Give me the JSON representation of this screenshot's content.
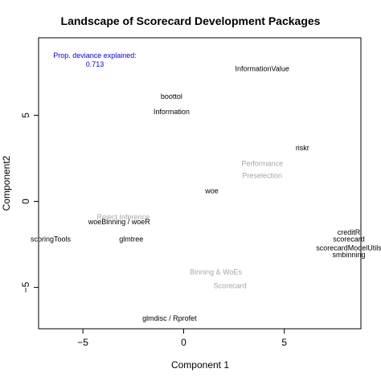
{
  "chart_data": {
    "type": "scatter",
    "title": "Landscape of Scorecard Development Packages",
    "xlabel": "Component 1",
    "ylabel": "Component2",
    "xlim": [
      -7.2,
      8.8
    ],
    "ylim": [
      -7.4,
      9.5
    ],
    "xticks": [
      -5,
      0,
      5
    ],
    "yticks": [
      -5,
      0,
      5
    ],
    "grid": false,
    "annotation": {
      "lines": [
        "Prop. deviance explained:",
        "0.713"
      ],
      "color": "#0000ff"
    },
    "packages": [
      {
        "label": "InformationValue",
        "x": 3.9,
        "y": 7.7
      },
      {
        "label": "boottol",
        "x": -0.6,
        "y": 6.1
      },
      {
        "label": "Information",
        "x": -0.6,
        "y": 5.2
      },
      {
        "label": "riskr",
        "x": 5.9,
        "y": 3.1
      },
      {
        "label": "woe",
        "x": 1.4,
        "y": 0.6
      },
      {
        "label": "woeBinning / woeR",
        "x": -3.2,
        "y": -1.2
      },
      {
        "label": "glmtree",
        "x": -2.6,
        "y": -2.2
      },
      {
        "label": "scoringTools",
        "x": -6.6,
        "y": -2.2
      },
      {
        "label": "creditR",
        "x": 8.2,
        "y": -1.8
      },
      {
        "label": "scorecard",
        "x": 8.2,
        "y": -2.2
      },
      {
        "label": "scorecardModelUtils",
        "x": 8.2,
        "y": -2.7
      },
      {
        "label": "smbinning",
        "x": 8.2,
        "y": -3.1
      },
      {
        "label": "glmdisc / Rprofet",
        "x": -0.7,
        "y": -6.8
      }
    ],
    "categories_labels": [
      {
        "label": "Performance",
        "x": 3.9,
        "y": 2.2
      },
      {
        "label": "Preselection",
        "x": 3.9,
        "y": 1.5
      },
      {
        "label": "Reject Inference",
        "x": -3.0,
        "y": -0.9
      },
      {
        "label": "Binning & WoEs",
        "x": 1.6,
        "y": -4.1
      },
      {
        "label": "Scorecard",
        "x": 2.3,
        "y": -4.9
      }
    ],
    "colors": {
      "packages": "#000000",
      "categories": "#a6a6a6",
      "annotation": "#0000ff"
    }
  }
}
